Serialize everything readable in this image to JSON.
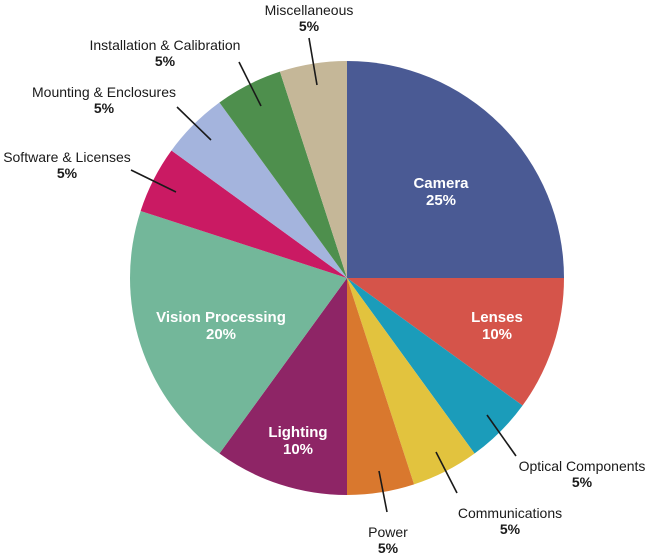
{
  "chart_data": {
    "type": "pie",
    "title": "",
    "background": "#ffffff",
    "direction": "clockwise",
    "start_angle_deg": 0,
    "inside_label_color": "#ffffff",
    "outside_label_color": "#1a1a1a",
    "leader_line_color": "#1a1a1a",
    "segments": [
      {
        "label": "Camera",
        "value": 25,
        "pct_label": "25%",
        "color": "#4a5a94",
        "label_placement": "inside"
      },
      {
        "label": "Lenses",
        "value": 10,
        "pct_label": "10%",
        "color": "#d5544a",
        "label_placement": "inside"
      },
      {
        "label": "Optical Components",
        "value": 5,
        "pct_label": "5%",
        "color": "#1b9cba",
        "label_placement": "outside"
      },
      {
        "label": "Communications",
        "value": 5,
        "pct_label": "5%",
        "color": "#e2c33e",
        "label_placement": "outside"
      },
      {
        "label": "Power",
        "value": 5,
        "pct_label": "5%",
        "color": "#d9782e",
        "label_placement": "outside"
      },
      {
        "label": "Lighting",
        "value": 10,
        "pct_label": "10%",
        "color": "#8e2566",
        "label_placement": "inside"
      },
      {
        "label": "Vision Processing",
        "value": 20,
        "pct_label": "20%",
        "color": "#73b79a",
        "label_placement": "inside"
      },
      {
        "label": "Software & Licenses",
        "value": 5,
        "pct_label": "5%",
        "color": "#ca1a63",
        "label_placement": "outside"
      },
      {
        "label": "Mounting & Enclosures",
        "value": 5,
        "pct_label": "5%",
        "color": "#a4b4dd",
        "label_placement": "outside"
      },
      {
        "label": "Installation & Calibration",
        "value": 5,
        "pct_label": "5%",
        "color": "#4e8f4d",
        "label_placement": "outside"
      },
      {
        "label": "Miscellaneous",
        "value": 5,
        "pct_label": "5%",
        "color": "#c5b798",
        "label_placement": "outside"
      }
    ]
  }
}
